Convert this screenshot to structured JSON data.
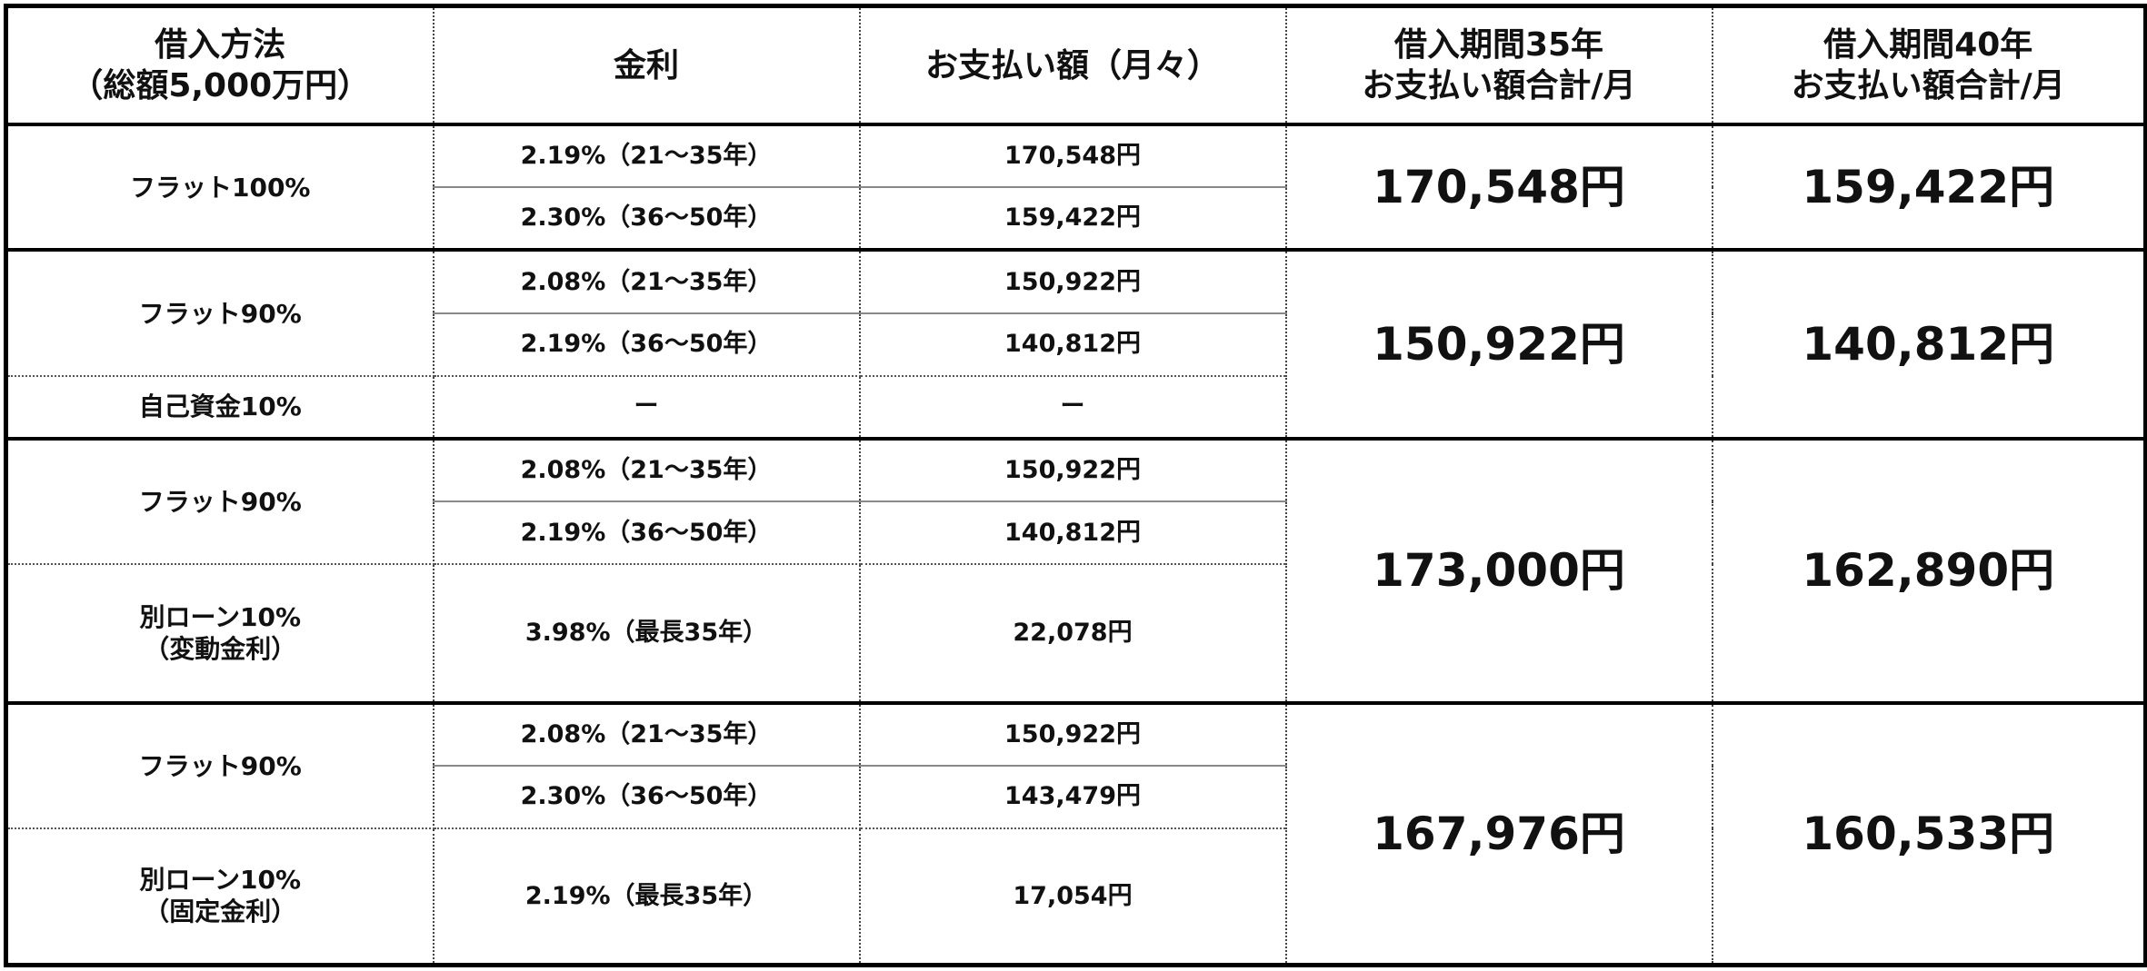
{
  "header": {
    "method": [
      "借入方法",
      "（総額5,000万円）"
    ],
    "rate": "金利",
    "monthly": "お支払い額（月々）",
    "total35": [
      "借入期間35年",
      "お支払い額合計/月"
    ],
    "total40": [
      "借入期間40年",
      "お支払い額合計/月"
    ]
  },
  "groups": [
    {
      "rows": [
        {
          "method": [
            "フラット100%"
          ],
          "rate": "2.19%（21〜35年）",
          "pay": "170,548円"
        },
        {
          "rate": "2.30%（36〜50年）",
          "pay": "159,422円"
        }
      ],
      "total35": "170,548円",
      "total40": "159,422円"
    },
    {
      "rows": [
        {
          "method": [
            "フラット90%"
          ],
          "rate": "2.08%（21〜35年）",
          "pay": "150,922円"
        },
        {
          "rate": "2.19%（36〜50年）",
          "pay": "140,812円"
        },
        {
          "method": [
            "自己資金10%"
          ],
          "rate": "ー",
          "pay": "ー"
        }
      ],
      "total35": "150,922円",
      "total40": "140,812円"
    },
    {
      "rows": [
        {
          "method": [
            "フラット90%"
          ],
          "rate": "2.08%（21〜35年）",
          "pay": "150,922円"
        },
        {
          "rate": "2.19%（36〜50年）",
          "pay": "140,812円"
        },
        {
          "method": [
            "別ローン10%",
            "（変動金利）"
          ],
          "rate": "3.98%（最長35年）",
          "pay": "22,078円"
        }
      ],
      "total35": "173,000円",
      "total40": "162,890円"
    },
    {
      "rows": [
        {
          "method": [
            "フラット90%"
          ],
          "rate": "2.08%（21〜35年）",
          "pay": "150,922円"
        },
        {
          "rate": "2.30%（36〜50年）",
          "pay": "143,479円"
        },
        {
          "method": [
            "別ローン10%",
            "（固定金利）"
          ],
          "rate": "2.19%（最長35年）",
          "pay": "17,054円"
        }
      ],
      "total35": "167,976円",
      "total40": "160,533円"
    }
  ]
}
